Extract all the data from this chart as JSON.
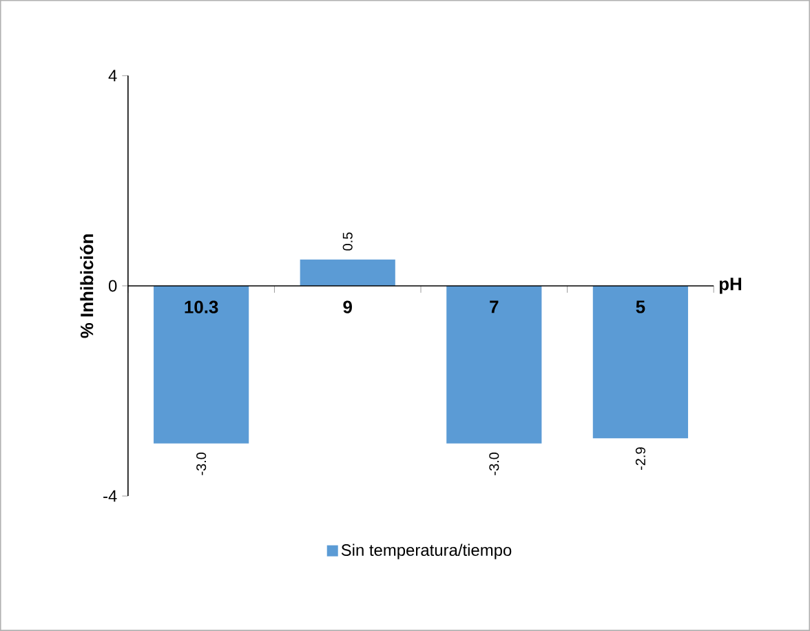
{
  "chart_data": {
    "type": "bar",
    "ylabel": "% Inhibición",
    "xlabel": "pH",
    "categories": [
      "10.3",
      "9",
      "7",
      "5"
    ],
    "series": [
      {
        "name": "Sin temperatura/tiempo",
        "color": "#5b9bd5",
        "values": [
          -3.0,
          0.5,
          -3.0,
          -2.9
        ],
        "value_labels": [
          "-3.0",
          "0.5",
          "-3.0",
          "-2.9"
        ]
      }
    ],
    "ylim": [
      -4,
      4
    ],
    "yticks": [
      -4,
      0,
      4
    ],
    "legend": "bottom",
    "grid": false
  }
}
